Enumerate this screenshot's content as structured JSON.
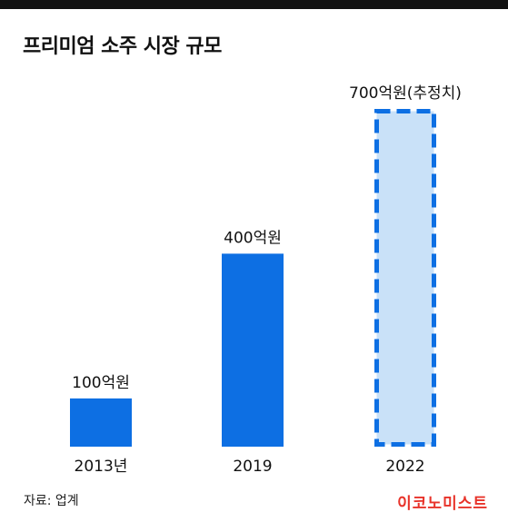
{
  "title": "프리미엄 소주 시장 규모",
  "source": "자료: 업계",
  "logo": {
    "text": "이코노미스트",
    "color": "#e8332a"
  },
  "colors": {
    "bar": "#0d6fe3",
    "estimate_fill": "#c9e1f8",
    "estimate_border": "#0d6fe3"
  },
  "chart_data": {
    "type": "bar",
    "title": "프리미엄 소주 시장 규모",
    "xlabel": "",
    "ylabel": "",
    "ylim": [
      0,
      700
    ],
    "grid": false,
    "legend": "none",
    "categories": [
      "2013년",
      "2019",
      "2022"
    ],
    "values": [
      100,
      400,
      700
    ],
    "value_labels": [
      "100억원",
      "400억원",
      "700억원(추정치)"
    ],
    "estimated": [
      false,
      false,
      true
    ],
    "unit": "억원"
  }
}
